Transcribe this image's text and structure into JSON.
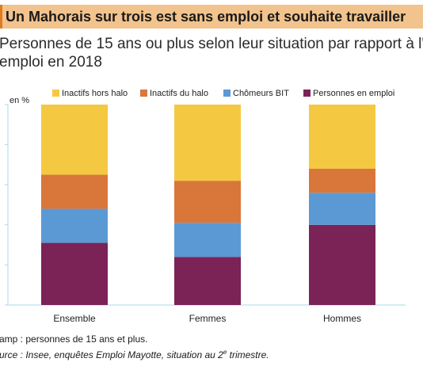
{
  "title": "Un Mahorais sur trois est sans emploi et souhaite travailler",
  "subtitle_line1": "Personnes de 15 ans ou plus selon leur situation par rapport à l'",
  "subtitle_line2": "emploi en 2018",
  "notes": {
    "champ": "amp : personnes de 15 ans et plus.",
    "source_prefix": "urce : Insee, enquêtes Emploi Mayotte, situation au 2",
    "source_sup": "e",
    "source_suffix": " trimestre."
  },
  "colors": {
    "inactifs_hors_halo": "#f5c842",
    "inactifs_du_halo": "#d9763a",
    "chomeurs_bit": "#5b99d4",
    "personnes_en_emploi": "#7b2257",
    "axis": "#a8d8e8",
    "title_bg": "#f2c38d"
  },
  "chart_data": {
    "type": "bar",
    "stacked": true,
    "ylabel": "en %",
    "ylim": [
      0,
      100
    ],
    "categories": [
      "Ensemble",
      "Femmes",
      "Hommes"
    ],
    "series": [
      {
        "name": "Personnes en emploi",
        "values": [
          31,
          24,
          40
        ]
      },
      {
        "name": "Chômeurs BIT",
        "values": [
          17,
          17,
          16
        ]
      },
      {
        "name": "Inactifs du halo",
        "values": [
          17,
          21,
          12
        ]
      },
      {
        "name": "Inactifs hors halo",
        "values": [
          35,
          38,
          32
        ]
      }
    ],
    "legend_order": [
      "Inactifs hors halo",
      "Inactifs du halo",
      "Chômeurs BIT",
      "Personnes en emploi"
    ],
    "legend_position": "top"
  }
}
